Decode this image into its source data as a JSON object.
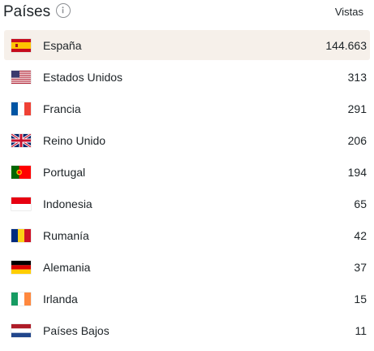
{
  "header": {
    "title": "Países",
    "info_icon": "info-icon",
    "column_label": "Vistas"
  },
  "rows": [
    {
      "country": "España",
      "views": "144.663",
      "flag": "es",
      "highlight": true
    },
    {
      "country": "Estados Unidos",
      "views": "313",
      "flag": "us",
      "highlight": false
    },
    {
      "country": "Francia",
      "views": "291",
      "flag": "fr",
      "highlight": false
    },
    {
      "country": "Reino Unido",
      "views": "206",
      "flag": "gb",
      "highlight": false
    },
    {
      "country": "Portugal",
      "views": "194",
      "flag": "pt",
      "highlight": false
    },
    {
      "country": "Indonesia",
      "views": "65",
      "flag": "id",
      "highlight": false
    },
    {
      "country": "Rumanía",
      "views": "42",
      "flag": "ro",
      "highlight": false
    },
    {
      "country": "Alemania",
      "views": "37",
      "flag": "de",
      "highlight": false
    },
    {
      "country": "Irlanda",
      "views": "15",
      "flag": "ie",
      "highlight": false
    },
    {
      "country": "Países Bajos",
      "views": "11",
      "flag": "nl",
      "highlight": false
    }
  ],
  "colors": {
    "highlight_row": "#f6f0ea",
    "text": "#1d2327",
    "icon": "#8c8f94"
  }
}
